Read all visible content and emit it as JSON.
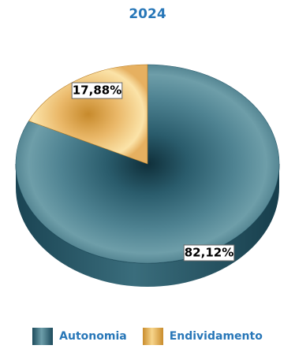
{
  "chart_data": {
    "type": "pie",
    "title": "2024",
    "slices": [
      {
        "label": "Autonomia",
        "value": 82.12,
        "value_label": "82,12%",
        "color": "#2a5f70"
      },
      {
        "label": "Endividamento",
        "value": 17.88,
        "value_label": "17,88%",
        "color": "#e8a94a"
      }
    ],
    "legend_position": "bottom",
    "style": "3d"
  },
  "colors": {
    "title": "#2877b8",
    "legend_text": "#2877b8",
    "autonomia_dark": "#0f2f3a",
    "autonomia_light": "#6e9ea9",
    "endividamento_dark": "#c78a2c",
    "endividamento_light": "#fbe3a8"
  }
}
